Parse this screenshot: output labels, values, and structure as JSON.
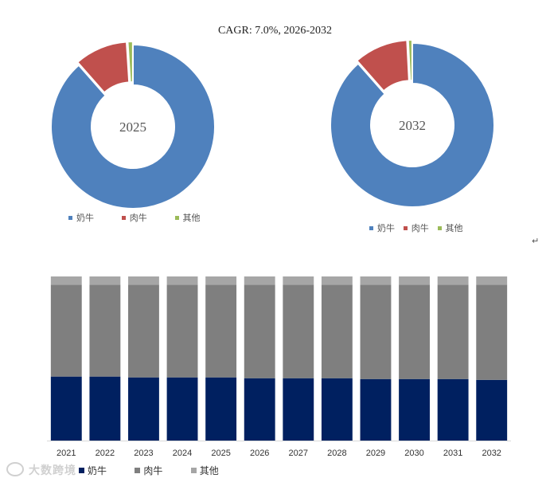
{
  "chart_data": [
    {
      "type": "pie",
      "subtype": "donut",
      "center_label": "2025",
      "categories": [
        "奶牛",
        "肉牛",
        "其他"
      ],
      "values": [
        88.5,
        10.5,
        1.0
      ],
      "colors": [
        "#4f81bd",
        "#c0504d",
        "#9bbb59"
      ]
    },
    {
      "type": "pie",
      "subtype": "donut",
      "center_label": "2032",
      "categories": [
        "奶牛",
        "肉牛",
        "其他"
      ],
      "values": [
        88.5,
        10.7,
        0.8
      ],
      "colors": [
        "#4f81bd",
        "#c0504d",
        "#9bbb59"
      ]
    },
    {
      "type": "bar",
      "stacked": true,
      "normalized": true,
      "categories": [
        "2021",
        "2022",
        "2023",
        "2024",
        "2025",
        "2026",
        "2027",
        "2028",
        "2029",
        "2030",
        "2031",
        "2032"
      ],
      "series": [
        {
          "name": "奶牛",
          "color": "#002060",
          "values": [
            39,
            39,
            38.5,
            38.5,
            38.5,
            38,
            38,
            38,
            37.5,
            37.5,
            37.5,
            37
          ]
        },
        {
          "name": "肉牛",
          "color": "#7f7f7f",
          "values": [
            56,
            56,
            56.5,
            56.5,
            56.5,
            57,
            57,
            57,
            57.5,
            57.5,
            57.5,
            58
          ]
        },
        {
          "name": "其他",
          "color": "#a6a6a6",
          "values": [
            5,
            5,
            5,
            5,
            5,
            5,
            5,
            5,
            5,
            5,
            5,
            5
          ]
        }
      ],
      "ylim": [
        0,
        100
      ]
    }
  ],
  "title": "CAGR:   7.0%, 2026-2032",
  "return_mark": "↵",
  "watermark": "大数跨境"
}
